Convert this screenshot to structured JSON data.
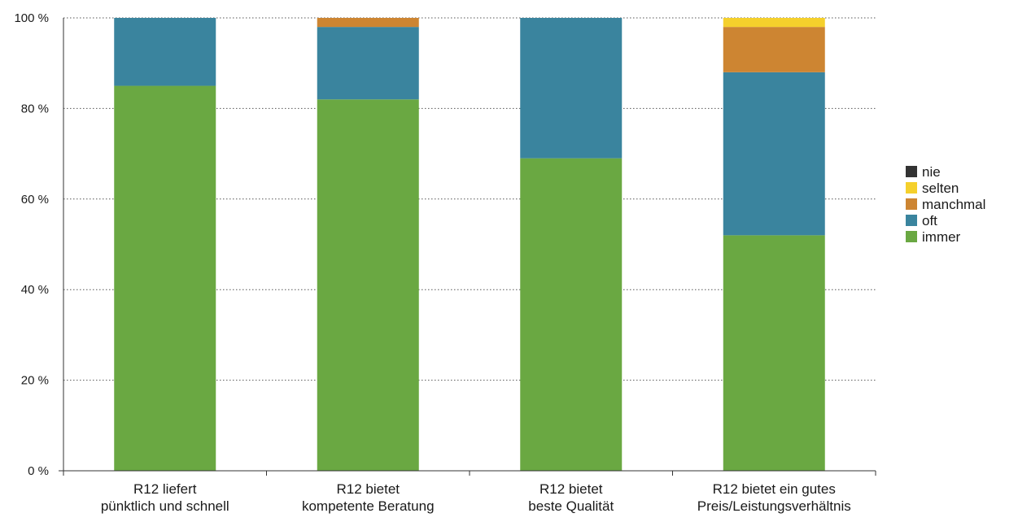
{
  "chart_data": {
    "type": "bar",
    "stacked": true,
    "categories": [
      [
        "R12 liefert",
        "pünktlich und schnell"
      ],
      [
        "R12 bietet",
        "kompetente Beratung"
      ],
      [
        "R12 bietet",
        "beste Qualität"
      ],
      [
        "R12 bietet ein gutes",
        "Preis/Leistungsverhältnis"
      ]
    ],
    "series": [
      {
        "name": "immer",
        "color": "#6aa842",
        "values": [
          85,
          82,
          69,
          52
        ]
      },
      {
        "name": "oft",
        "color": "#3a849e",
        "values": [
          15,
          16,
          31,
          36
        ]
      },
      {
        "name": "manchmal",
        "color": "#cd8532",
        "values": [
          0,
          2,
          0,
          10
        ]
      },
      {
        "name": "selten",
        "color": "#f5d02c",
        "values": [
          0,
          0,
          0,
          2
        ]
      },
      {
        "name": "nie",
        "color": "#333333",
        "values": [
          0,
          0,
          0,
          0
        ]
      }
    ],
    "legend_order": [
      "nie",
      "selten",
      "manchmal",
      "oft",
      "immer"
    ],
    "yticks": [
      "0 %",
      "20 %",
      "40 %",
      "60 %",
      "80 %",
      "100 %"
    ],
    "ylim": [
      0,
      100
    ],
    "grid": true,
    "legend_position": "right",
    "title": "",
    "xlabel": "",
    "ylabel": ""
  }
}
